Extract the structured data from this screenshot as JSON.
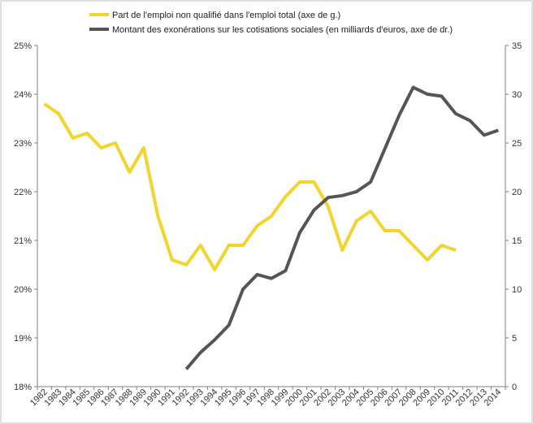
{
  "chart_data": {
    "type": "line",
    "x": [
      "1982",
      "1983",
      "1984",
      "1985",
      "1986",
      "1987",
      "1988",
      "1989",
      "1990",
      "1991",
      "1992",
      "1993",
      "1994",
      "1995",
      "1996",
      "1997",
      "1998",
      "1999",
      "2000",
      "2001",
      "2002",
      "2003",
      "2004",
      "2005",
      "2006",
      "2007",
      "2008",
      "2009",
      "2010",
      "2011",
      "2012",
      "2013",
      "2014"
    ],
    "y_left": {
      "min": 18,
      "max": 25,
      "step": 1,
      "tick_suffix": "%"
    },
    "y_right": {
      "min": 0,
      "max": 35,
      "step": 5
    },
    "legend": {
      "placement": "top-left"
    },
    "grid": false,
    "series": [
      {
        "name": "Part de l'emploi non qualifié dans l'emploi total (axe de g.)",
        "axis": "left",
        "color": "#f2d52a",
        "values": [
          23.8,
          23.6,
          23.1,
          23.2,
          22.9,
          23.0,
          22.4,
          22.9,
          21.5,
          20.6,
          20.5,
          20.9,
          20.4,
          20.9,
          20.9,
          21.3,
          21.5,
          21.9,
          22.2,
          22.2,
          21.7,
          20.8,
          21.4,
          21.6,
          21.2,
          21.2,
          20.9,
          20.6,
          20.9,
          20.8,
          null,
          null,
          null
        ]
      },
      {
        "name": "Montant des exonérations sur les cotisations sociales (en milliards d'euros, axe de dr.)",
        "axis": "right",
        "color": "#555555",
        "values": [
          null,
          null,
          null,
          null,
          null,
          null,
          null,
          null,
          null,
          null,
          1.8,
          3.5,
          4.8,
          6.3,
          10.0,
          11.5,
          11.1,
          11.9,
          15.8,
          18.1,
          19.4,
          19.6,
          20.0,
          21.0,
          24.4,
          27.8,
          30.7,
          30.0,
          29.8,
          28.0,
          27.3,
          25.8,
          26.3
        ]
      }
    ]
  }
}
